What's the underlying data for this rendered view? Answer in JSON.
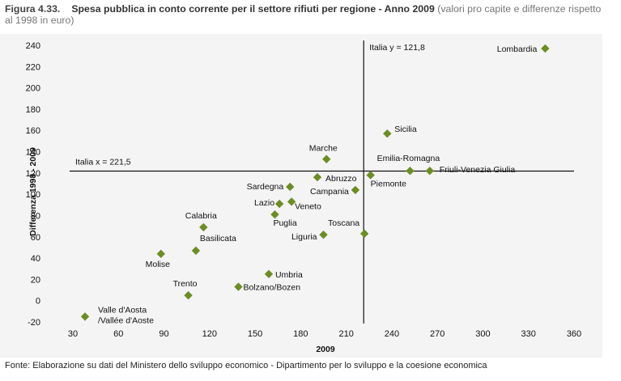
{
  "figure_number": "Figura 4.33.",
  "title": "Spesa pubblica in conto corrente per il settore rifiuti per regione - Anno 2009",
  "subtitle": "(valori pro capite e differenze rispetto al 1998 in euro)",
  "source": "Fonte: Elaborazione su dati del Ministero dello sviluppo economico - Dipartimento per lo sviluppo e la coesione economica",
  "chart_data": {
    "type": "scatter",
    "xlabel": "2009",
    "ylabel": "Differenza 1998 - 2009",
    "xlim": [
      30,
      360
    ],
    "ylim": [
      -20,
      240
    ],
    "x_ticks": [
      30,
      60,
      90,
      120,
      150,
      180,
      210,
      240,
      270,
      300,
      330,
      360
    ],
    "y_ticks": [
      -20,
      0,
      20,
      40,
      60,
      80,
      100,
      120,
      140,
      160,
      180,
      200,
      220,
      240
    ],
    "grid": false,
    "marker_color": "#6b8e23",
    "reference_lines": [
      {
        "axis": "x",
        "value": 221.5,
        "label": "Italia x = 221,5"
      },
      {
        "axis": "y",
        "value": 121.8,
        "label": "Italia y = 121,8"
      }
    ],
    "points": [
      {
        "label": "Lombardia",
        "x": 341,
        "y": 237
      },
      {
        "label": "Sicilia",
        "x": 237,
        "y": 157
      },
      {
        "label": "Marche",
        "x": 197,
        "y": 133
      },
      {
        "label": "Emilia-Romagna",
        "x": 252,
        "y": 122
      },
      {
        "label": "Friuli-Venezia Giulia",
        "x": 265,
        "y": 122
      },
      {
        "label": "Abruzzo",
        "x": 191,
        "y": 116
      },
      {
        "label": "Piemonte",
        "x": 226,
        "y": 118
      },
      {
        "label": "Sardegna",
        "x": 173,
        "y": 107
      },
      {
        "label": "Campania",
        "x": 216,
        "y": 104
      },
      {
        "label": "Lazio",
        "x": 166,
        "y": 91
      },
      {
        "label": "Veneto",
        "x": 174,
        "y": 93
      },
      {
        "label": "Puglia",
        "x": 163,
        "y": 81
      },
      {
        "label": "Calabria",
        "x": 116,
        "y": 69
      },
      {
        "label": "Toscana",
        "x": 222,
        "y": 63
      },
      {
        "label": "Liguria",
        "x": 195,
        "y": 62
      },
      {
        "label": "Basilicata",
        "x": 111,
        "y": 47
      },
      {
        "label": "Molise",
        "x": 88,
        "y": 44
      },
      {
        "label": "Umbria",
        "x": 159,
        "y": 25
      },
      {
        "label": "Bolzano/Bozen",
        "x": 139,
        "y": 13
      },
      {
        "label": "Trento",
        "x": 106,
        "y": 5
      },
      {
        "label": "Valle d'Aosta /Vallée d'Aoste",
        "x": 38,
        "y": -15
      }
    ]
  }
}
